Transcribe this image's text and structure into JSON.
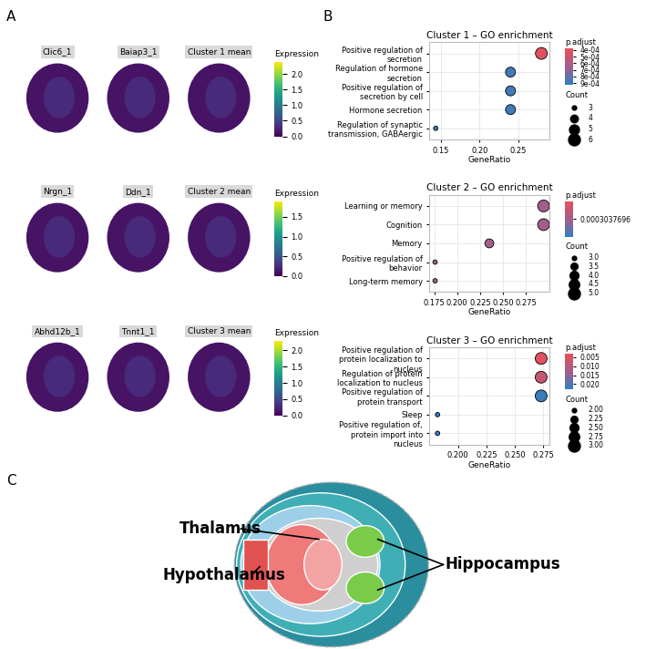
{
  "panel_labels": [
    "A",
    "B",
    "C"
  ],
  "spatial_maps": {
    "colorbar_title": "Expression",
    "rows": [
      {
        "titles": [
          "Clic6_1",
          "Baiap3_1",
          "Cluster 1 mean"
        ],
        "clim": [
          0,
          2.4
        ],
        "cticks": [
          {
            "value": 0,
            "label": "0.0"
          },
          {
            "value": 0.5,
            "label": "0.5"
          },
          {
            "value": 1,
            "label": "1.0"
          },
          {
            "value": 1.5,
            "label": "1.5"
          },
          {
            "value": 2,
            "label": "2.0"
          }
        ]
      },
      {
        "titles": [
          "Nrgn_1",
          "Ddn_1",
          "Cluster 2 mean"
        ],
        "clim": [
          0,
          1.9
        ],
        "cticks": [
          {
            "value": 0,
            "label": "0.0"
          },
          {
            "value": 0.5,
            "label": "0.5"
          },
          {
            "value": 1,
            "label": "1.0"
          },
          {
            "value": 1.5,
            "label": "1.5"
          }
        ]
      },
      {
        "titles": [
          "Abhd12b_1",
          "Tnnt1_1",
          "Cluster 3 mean"
        ],
        "clim": [
          0,
          2.3
        ],
        "cticks": [
          {
            "value": 0,
            "label": "0.0"
          },
          {
            "value": 0.5,
            "label": "0.5"
          },
          {
            "value": 1,
            "label": "1.0"
          },
          {
            "value": 1.5,
            "label": "1.5"
          },
          {
            "value": 2,
            "label": "2.0"
          }
        ]
      }
    ]
  },
  "chart_data": [
    {
      "type": "scatter",
      "title": "Cluster 1 – GO enrichment",
      "xlabel": "GeneRatio",
      "grid": true,
      "categories": [
        "Positive regulation of secretion",
        "Regulation of hormone secretion",
        "Positive regulation of secretion by cell",
        "Hormone secretion",
        "Regulation of synaptic transmission, GABAergic"
      ],
      "values": [
        0.28,
        0.24,
        0.24,
        0.24,
        0.143
      ],
      "count": [
        6,
        5,
        5,
        5,
        3
      ],
      "p_adjust": [
        0.0004,
        0.00088,
        0.00088,
        0.00088,
        0.0009
      ],
      "xlim": [
        0.135,
        0.29
      ],
      "xticks": [
        0.15,
        {
          "value": 0.2,
          "label": "0.20"
        },
        0.25
      ],
      "colorbar": {
        "title": "p.adjust",
        "lim": [
          0.00038,
          0.00092
        ],
        "ticks": [
          {
            "value": 0.0004,
            "label": "4e-04"
          },
          {
            "value": 0.0005,
            "label": "5e-04"
          },
          {
            "value": 0.0006,
            "label": "6e-04"
          },
          {
            "value": 0.0007,
            "label": "7e-04"
          },
          {
            "value": 0.0008,
            "label": "8e-04"
          },
          {
            "value": 0.0009,
            "label": "9e-04"
          }
        ]
      },
      "size_legend": {
        "title": "Count",
        "values": [
          3,
          4,
          5,
          6
        ]
      }
    },
    {
      "type": "scatter",
      "title": "Cluster 2 – GO enrichment",
      "xlabel": "GeneRatio",
      "grid": true,
      "categories": [
        "Learning or memory",
        "Cognition",
        "Memory",
        "Positive regulation of behavior",
        "Long-term memory"
      ],
      "values": [
        0.294,
        0.294,
        0.235,
        0.176,
        0.176
      ],
      "count": [
        5,
        5,
        4,
        3,
        3
      ],
      "p_adjust": [
        0.0003037696,
        0.0003037696,
        0.0003037696,
        0.0003037696,
        0.0003037696
      ],
      "xlim": [
        0.17,
        0.3
      ],
      "xticks": [
        0.175,
        {
          "value": 0.2,
          "label": "0.200"
        },
        0.225,
        {
          "value": 0.25,
          "label": "0.250"
        },
        0.275
      ],
      "colorbar": {
        "title": "p.adjust",
        "lim": [
          0.0003037686,
          0.0003037706
        ],
        "ticks": [
          0.0003037696
        ]
      },
      "size_legend": {
        "title": "Count",
        "values": [
          {
            "value": 3,
            "label": "3.0"
          },
          3.5,
          {
            "value": 4,
            "label": "4.0"
          },
          4.5,
          {
            "value": 5,
            "label": "5.0"
          }
        ]
      }
    },
    {
      "type": "scatter",
      "title": "Cluster 3 – GO enrichment",
      "xlabel": "GeneRatio",
      "grid": true,
      "categories": [
        "Positive regulation of protein localization to nucleus",
        "Regulation of protein localization to nucleus",
        "Positive regulation of protein transport",
        "Sleep",
        "Positive regulation of, protein import into nucleus"
      ],
      "values": [
        0.273,
        0.273,
        0.273,
        0.182,
        0.182
      ],
      "count": [
        3,
        3,
        3,
        2,
        2
      ],
      "p_adjust": [
        0.004,
        0.008,
        0.022,
        0.022,
        0.022
      ],
      "xlim": [
        0.175,
        0.28
      ],
      "xticks": [
        {
          "value": 0.2,
          "label": "0.200"
        },
        0.225,
        {
          "value": 0.25,
          "label": "0.250"
        },
        0.275
      ],
      "colorbar": {
        "title": "p.adjust",
        "lim": [
          0.003,
          0.023
        ],
        "ticks": [
          0.005,
          {
            "value": 0.01,
            "label": "0.010"
          },
          0.015,
          {
            "value": 0.02,
            "label": "0.020"
          }
        ]
      },
      "size_legend": {
        "title": "Count",
        "values": [
          {
            "value": 2,
            "label": "2.00"
          },
          2.25,
          {
            "value": 2.5,
            "label": "2.50"
          },
          2.75,
          {
            "value": 3,
            "label": "3.00"
          }
        ]
      }
    }
  ],
  "diagram": {
    "labels": [
      "Thalamus",
      "Hypothalamus",
      "Hippocampus"
    ]
  }
}
